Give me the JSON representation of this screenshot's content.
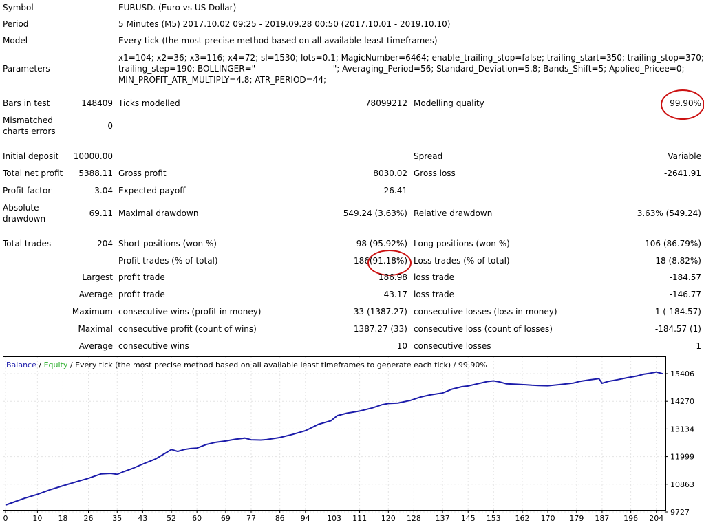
{
  "report": {
    "symbol": {
      "label": "Symbol",
      "value": "EURUSD. (Euro vs US Dollar)"
    },
    "period": {
      "label": "Period",
      "value": "5 Minutes (M5) 2017.10.02 09:25 - 2019.09.28 00:50 (2017.10.01 - 2019.10.10)"
    },
    "model": {
      "label": "Model",
      "value": "Every tick (the most precise method based on all available least timeframes)"
    },
    "parameters": {
      "label": "Parameters",
      "line1": "x1=104; x2=36; x3=116; x4=72; sl=1530; lots=0.1; MagicNumber=6464; enable_trailing_stop=false; trailing_start=350; trailing_stop=370;",
      "line2": "trailing_step=190; BOLLINGER=\"--------------------------\"; Averaging_Period=56; Standard_Deviation=5.8; Bands_Shift=5; Applied_Pricee=0;",
      "line3": "MIN_PROFIT_ATR_MULTIPLY=4.8; ATR_PERIOD=44;"
    },
    "bars_in_test": {
      "label": "Bars in test",
      "value": "148409"
    },
    "ticks_modelled": {
      "label": "Ticks modelled",
      "value": "78099212"
    },
    "modelling_quality": {
      "label": "Modelling quality",
      "value": "99.90%"
    },
    "mismatched": {
      "label": "Mismatched charts errors",
      "value": "0"
    },
    "initial_deposit": {
      "label": "Initial deposit",
      "value": "10000.00"
    },
    "spread": {
      "label": "Spread",
      "value": "Variable"
    },
    "total_net_profit": {
      "label": "Total net profit",
      "value": "5388.11"
    },
    "gross_profit": {
      "label": "Gross profit",
      "value": "8030.02"
    },
    "gross_loss": {
      "label": "Gross loss",
      "value": "-2641.91"
    },
    "profit_factor": {
      "label": "Profit factor",
      "value": "3.04"
    },
    "expected_payoff": {
      "label": "Expected payoff",
      "value": "26.41"
    },
    "absolute_drawdown": {
      "label": "Absolute drawdown",
      "value": "69.11"
    },
    "maximal_drawdown": {
      "label": "Maximal drawdown",
      "value": "549.24 (3.63%)"
    },
    "relative_drawdown": {
      "label": "Relative drawdown",
      "value": "3.63% (549.24)"
    },
    "total_trades": {
      "label": "Total trades",
      "value": "204"
    },
    "short_positions": {
      "label": "Short positions (won %)",
      "value": "98 (95.92%)"
    },
    "long_positions": {
      "label": "Long positions (won %)",
      "value": "106 (86.79%)"
    },
    "profit_trades": {
      "label": "Profit trades (% of total)",
      "count": "186",
      "pct": "(91.18%)"
    },
    "loss_trades": {
      "label": "Loss trades (% of total)",
      "value": "18 (8.82%)"
    },
    "largest": {
      "label": "Largest",
      "profit_label": "profit trade",
      "profit_value": "186.98",
      "loss_label": "loss trade",
      "loss_value": "-184.57"
    },
    "average": {
      "label": "Average",
      "profit_label": "profit trade",
      "profit_value": "43.17",
      "loss_label": "loss trade",
      "loss_value": "-146.77"
    },
    "maximum": {
      "label": "Maximum",
      "wins_label": "consecutive wins (profit in money)",
      "wins_value": "33 (1387.27)",
      "losses_label": "consecutive losses (loss in money)",
      "losses_value": "1 (-184.57)"
    },
    "maximal": {
      "label": "Maximal",
      "profit_label": "consecutive profit (count of wins)",
      "profit_value": "1387.27 (33)",
      "loss_label": "consecutive loss (count of losses)",
      "loss_value": "-184.57 (1)"
    },
    "average_consec": {
      "label": "Average",
      "wins_label": "consecutive wins",
      "wins_value": "10",
      "losses_label": "consecutive losses",
      "losses_value": "1"
    }
  },
  "colors": {
    "balance": "#1c1caa",
    "equity": "#22aa22",
    "highlight_circle": "#cc1111"
  },
  "chart_data": {
    "type": "line",
    "legend": {
      "balance": "Balance",
      "separator": " / ",
      "equity": "Equity",
      "rest": " / Every tick (the most precise method based on all available least timeframes to generate each tick) / 99.90%"
    },
    "x_ticks": [
      "0",
      "10",
      "18",
      "26",
      "35",
      "43",
      "52",
      "60",
      "69",
      "77",
      "86",
      "94",
      "103",
      "111",
      "120",
      "128",
      "137",
      "145",
      "153",
      "162",
      "170",
      "179",
      "187",
      "196",
      "204"
    ],
    "y_ticks": [
      "15406",
      "14270",
      "13134",
      "11999",
      "10863",
      "9727"
    ],
    "xlim": [
      0,
      206
    ],
    "ylim": [
      9727,
      15406
    ],
    "series": [
      {
        "name": "Balance",
        "x": [
          0,
          3,
          6,
          10,
          14,
          18,
          22,
          26,
          30,
          33,
          35,
          37,
          40,
          43,
          47,
          50,
          52,
          54,
          56,
          58,
          60,
          63,
          66,
          69,
          72,
          75,
          77,
          80,
          82,
          86,
          90,
          94,
          98,
          102,
          104,
          107,
          111,
          115,
          118,
          120,
          123,
          127,
          130,
          133,
          137,
          140,
          143,
          145,
          148,
          151,
          153,
          155,
          157,
          160,
          163,
          165,
          167,
          170,
          174,
          178,
          180,
          183,
          186,
          187,
          189,
          192,
          195,
          198,
          200,
          202,
          204,
          206
        ],
        "y": [
          10010,
          10150,
          10290,
          10450,
          10640,
          10800,
          10960,
          11110,
          11290,
          11310,
          11270,
          11380,
          11520,
          11690,
          11900,
          12130,
          12290,
          12210,
          12290,
          12330,
          12350,
          12500,
          12590,
          12640,
          12710,
          12760,
          12690,
          12680,
          12700,
          12780,
          12910,
          13060,
          13320,
          13470,
          13680,
          13780,
          13870,
          14000,
          14130,
          14180,
          14200,
          14310,
          14440,
          14530,
          14610,
          14770,
          14870,
          14900,
          14990,
          15080,
          15110,
          15060,
          14990,
          14970,
          14950,
          14930,
          14920,
          14910,
          14960,
          15020,
          15090,
          15150,
          15200,
          15010,
          15090,
          15160,
          15240,
          15310,
          15380,
          15420,
          15470,
          15400
        ]
      }
    ]
  }
}
